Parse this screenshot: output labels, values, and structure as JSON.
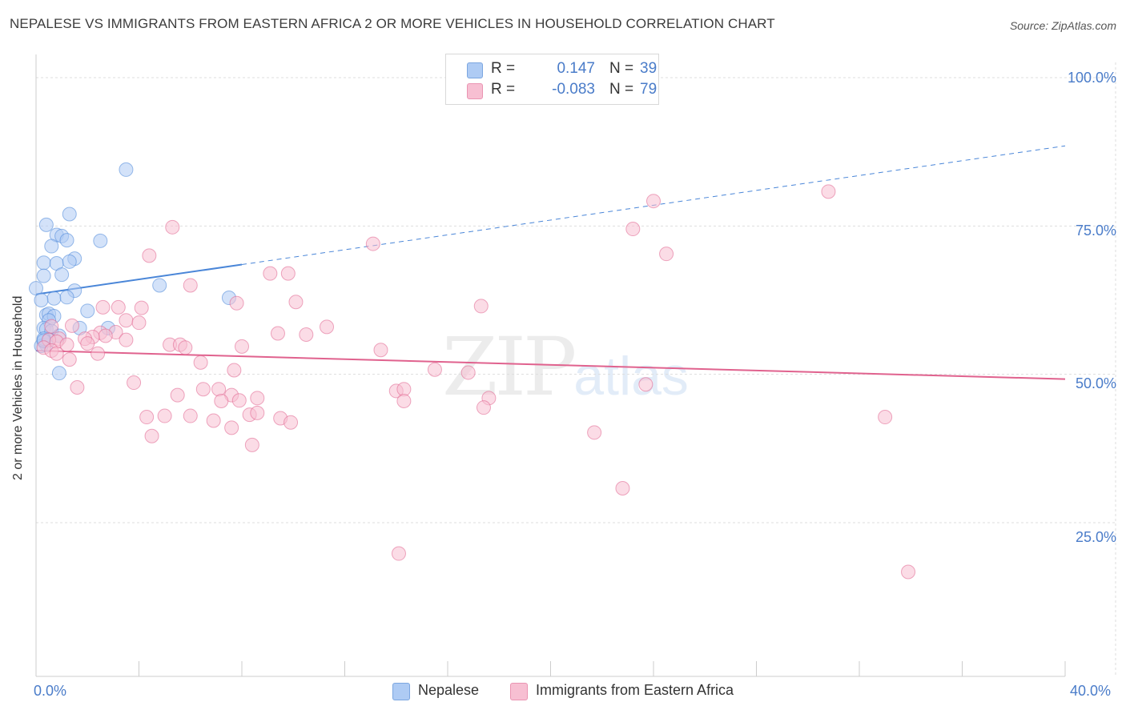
{
  "title": "NEPALESE VS IMMIGRANTS FROM EASTERN AFRICA 2 OR MORE VEHICLES IN HOUSEHOLD CORRELATION CHART",
  "source": "Source: ZipAtlas.com",
  "watermark": {
    "zip": "ZIP",
    "atlas": "atlas"
  },
  "legend_top": {
    "rows": [
      {
        "label": "R =",
        "r": "0.147",
        "n_label": "N =",
        "n": "39",
        "color": "#aecbf4"
      },
      {
        "label": "R =",
        "r": "-0.083",
        "n_label": "N =",
        "n": "79",
        "color": "#f7bfd2"
      }
    ]
  },
  "legend_bottom": [
    {
      "label": "Nepalese",
      "color": "#aecbf4"
    },
    {
      "label": "Immigrants from Eastern Africa",
      "color": "#f7bfd2"
    }
  ],
  "chart_data": {
    "type": "scatter",
    "title": "NEPALESE VS IMMIGRANTS FROM EASTERN AFRICA 2 OR MORE VEHICLES IN HOUSEHOLD CORRELATION CHART",
    "xlabel": "",
    "ylabel": "2 or more Vehicles in Household",
    "xlim": [
      0,
      40
    ],
    "ylim": [
      0,
      105
    ],
    "x_tick_labels": [
      "0.0%",
      "40.0%"
    ],
    "y_ticks": [
      {
        "value": 100,
        "label": "100.0%"
      },
      {
        "value": 75,
        "label": "75.0%"
      },
      {
        "value": 50,
        "label": "50.0%"
      },
      {
        "value": 25,
        "label": "25.0%"
      }
    ],
    "series": [
      {
        "name": "Nepalese",
        "color": "#4a86d8",
        "fill": "#aecbf4",
        "trend": {
          "x0": 0,
          "y0": 63.5,
          "x1": 8,
          "y1": 68.5,
          "dash_to_x": 40,
          "dash_to_y": 88.5
        },
        "points": [
          [
            3.5,
            84.5
          ],
          [
            1.3,
            77.0
          ],
          [
            0.4,
            75.2
          ],
          [
            0.8,
            73.5
          ],
          [
            1.0,
            73.3
          ],
          [
            1.2,
            72.6
          ],
          [
            2.5,
            72.5
          ],
          [
            0.6,
            71.6
          ],
          [
            0.3,
            68.8
          ],
          [
            0.8,
            68.7
          ],
          [
            1.5,
            69.5
          ],
          [
            1.3,
            69.0
          ],
          [
            0.3,
            66.6
          ],
          [
            1.0,
            66.8
          ],
          [
            0.0,
            64.5
          ],
          [
            1.5,
            64.1
          ],
          [
            4.8,
            65.0
          ],
          [
            0.7,
            62.8
          ],
          [
            1.2,
            63.0
          ],
          [
            0.2,
            62.5
          ],
          [
            7.5,
            62.9
          ],
          [
            2.0,
            60.7
          ],
          [
            0.4,
            60.0
          ],
          [
            0.5,
            60.2
          ],
          [
            0.7,
            59.8
          ],
          [
            0.5,
            59.1
          ],
          [
            0.3,
            57.8
          ],
          [
            0.4,
            57.6
          ],
          [
            0.6,
            57.3
          ],
          [
            2.8,
            57.8
          ],
          [
            1.7,
            57.8
          ],
          [
            0.9,
            56.5
          ],
          [
            0.3,
            55.5
          ],
          [
            0.5,
            55.8
          ],
          [
            0.4,
            55.0
          ],
          [
            0.2,
            54.8
          ],
          [
            0.3,
            56.0
          ],
          [
            0.9,
            50.2
          ],
          [
            0.3,
            55.7
          ]
        ]
      },
      {
        "name": "Immigrants from Eastern Africa",
        "color": "#e0628e",
        "fill": "#f7bfd2",
        "trend": {
          "x0": 0,
          "y0": 54.0,
          "x1": 40,
          "y1": 49.2
        },
        "points": [
          [
            30.8,
            80.8
          ],
          [
            24.0,
            79.2
          ],
          [
            23.2,
            74.5
          ],
          [
            5.3,
            74.8
          ],
          [
            13.1,
            72.0
          ],
          [
            24.5,
            70.3
          ],
          [
            4.4,
            70.0
          ],
          [
            9.1,
            67.0
          ],
          [
            9.8,
            67.0
          ],
          [
            6.0,
            65.0
          ],
          [
            7.8,
            62.0
          ],
          [
            10.1,
            62.2
          ],
          [
            17.3,
            61.5
          ],
          [
            2.6,
            61.3
          ],
          [
            3.2,
            61.3
          ],
          [
            4.1,
            61.2
          ],
          [
            3.5,
            59.1
          ],
          [
            4.0,
            58.7
          ],
          [
            1.4,
            58.2
          ],
          [
            11.3,
            58.0
          ],
          [
            0.6,
            58.1
          ],
          [
            3.1,
            57.1
          ],
          [
            2.5,
            57.0
          ],
          [
            9.4,
            56.9
          ],
          [
            10.5,
            56.7
          ],
          [
            2.7,
            56.5
          ],
          [
            2.2,
            56.3
          ],
          [
            1.9,
            56.0
          ],
          [
            0.9,
            56.0
          ],
          [
            0.5,
            55.8
          ],
          [
            0.8,
            55.5
          ],
          [
            1.2,
            55.0
          ],
          [
            3.5,
            55.8
          ],
          [
            5.2,
            55.0
          ],
          [
            5.6,
            55.0
          ],
          [
            2.0,
            55.2
          ],
          [
            8.0,
            54.7
          ],
          [
            0.3,
            54.5
          ],
          [
            0.6,
            54.0
          ],
          [
            5.8,
            54.5
          ],
          [
            13.4,
            54.1
          ],
          [
            0.8,
            53.5
          ],
          [
            2.4,
            53.5
          ],
          [
            1.3,
            52.5
          ],
          [
            6.4,
            52.0
          ],
          [
            7.7,
            50.7
          ],
          [
            15.5,
            50.8
          ],
          [
            16.8,
            50.3
          ],
          [
            3.8,
            48.6
          ],
          [
            23.7,
            48.3
          ],
          [
            1.6,
            47.8
          ],
          [
            7.1,
            47.5
          ],
          [
            6.5,
            47.5
          ],
          [
            14.0,
            47.2
          ],
          [
            14.3,
            47.5
          ],
          [
            7.6,
            46.5
          ],
          [
            5.5,
            46.5
          ],
          [
            17.6,
            46.0
          ],
          [
            8.6,
            46.0
          ],
          [
            7.9,
            45.6
          ],
          [
            7.2,
            45.5
          ],
          [
            14.3,
            45.5
          ],
          [
            17.4,
            44.4
          ],
          [
            5.0,
            43.0
          ],
          [
            4.3,
            42.8
          ],
          [
            6.0,
            43.0
          ],
          [
            8.3,
            43.2
          ],
          [
            8.6,
            43.5
          ],
          [
            9.5,
            42.6
          ],
          [
            9.9,
            41.9
          ],
          [
            6.9,
            42.2
          ],
          [
            7.6,
            41.0
          ],
          [
            33.0,
            42.8
          ],
          [
            4.5,
            39.6
          ],
          [
            8.4,
            38.1
          ],
          [
            22.8,
            30.8
          ],
          [
            14.1,
            19.8
          ],
          [
            33.9,
            16.7
          ],
          [
            21.7,
            40.2
          ]
        ]
      }
    ]
  },
  "axis_colors": {
    "tick_label": "#4a7cc9",
    "grid": "#dddddd",
    "axis": "#cccccc"
  }
}
